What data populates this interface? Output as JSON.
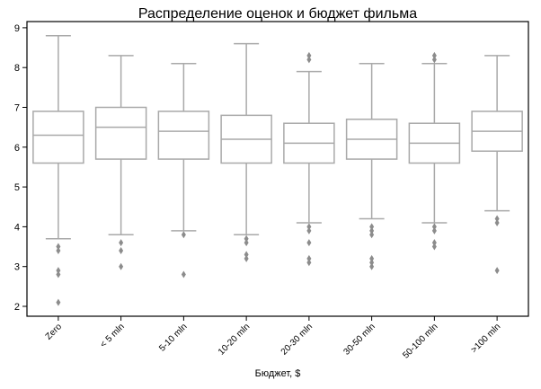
{
  "chart_data": {
    "type": "box",
    "title": "Распределение оценок и бюджет фильма",
    "xlabel": "Бюджет, $",
    "ylabel": "",
    "ylim": [
      1.8,
      9.2
    ],
    "yticks": [
      2,
      3,
      4,
      5,
      6,
      7,
      8,
      9
    ],
    "grid": false,
    "color": "#a9a9a9",
    "categories": [
      "Zero",
      "< 5 mln",
      "5-10 mln",
      "10-20 mln",
      "20-30 mln",
      "30-50 mln",
      "50-100 mln",
      ">100 mln"
    ],
    "boxes": [
      {
        "whisker_low": 3.7,
        "q1": 5.6,
        "median": 6.3,
        "q3": 6.9,
        "whisker_high": 8.8,
        "outliers": [
          3.5,
          3.4,
          2.9,
          2.8,
          2.1
        ]
      },
      {
        "whisker_low": 3.8,
        "q1": 5.7,
        "median": 6.5,
        "q3": 7.0,
        "whisker_high": 8.3,
        "outliers": [
          3.6,
          3.4,
          3.0
        ]
      },
      {
        "whisker_low": 3.9,
        "q1": 5.7,
        "median": 6.4,
        "q3": 6.9,
        "whisker_high": 8.1,
        "outliers": [
          3.8,
          2.8
        ]
      },
      {
        "whisker_low": 3.8,
        "q1": 5.6,
        "median": 6.2,
        "q3": 6.8,
        "whisker_high": 8.6,
        "outliers": [
          3.7,
          3.6,
          3.3,
          3.2
        ]
      },
      {
        "whisker_low": 4.1,
        "q1": 5.6,
        "median": 6.1,
        "q3": 6.6,
        "whisker_high": 7.9,
        "outliers": [
          8.3,
          8.2,
          4.0,
          3.9,
          3.6,
          3.2,
          3.1
        ]
      },
      {
        "whisker_low": 4.2,
        "q1": 5.7,
        "median": 6.2,
        "q3": 6.7,
        "whisker_high": 8.1,
        "outliers": [
          4.0,
          3.9,
          3.8,
          3.2,
          3.1,
          3.0
        ]
      },
      {
        "whisker_low": 4.1,
        "q1": 5.6,
        "median": 6.1,
        "q3": 6.6,
        "whisker_high": 8.1,
        "outliers": [
          8.3,
          8.2,
          4.0,
          3.9,
          3.6,
          3.5
        ]
      },
      {
        "whisker_low": 4.4,
        "q1": 5.9,
        "median": 6.4,
        "q3": 6.9,
        "whisker_high": 8.3,
        "outliers": [
          4.2,
          4.1,
          2.9
        ]
      }
    ]
  }
}
